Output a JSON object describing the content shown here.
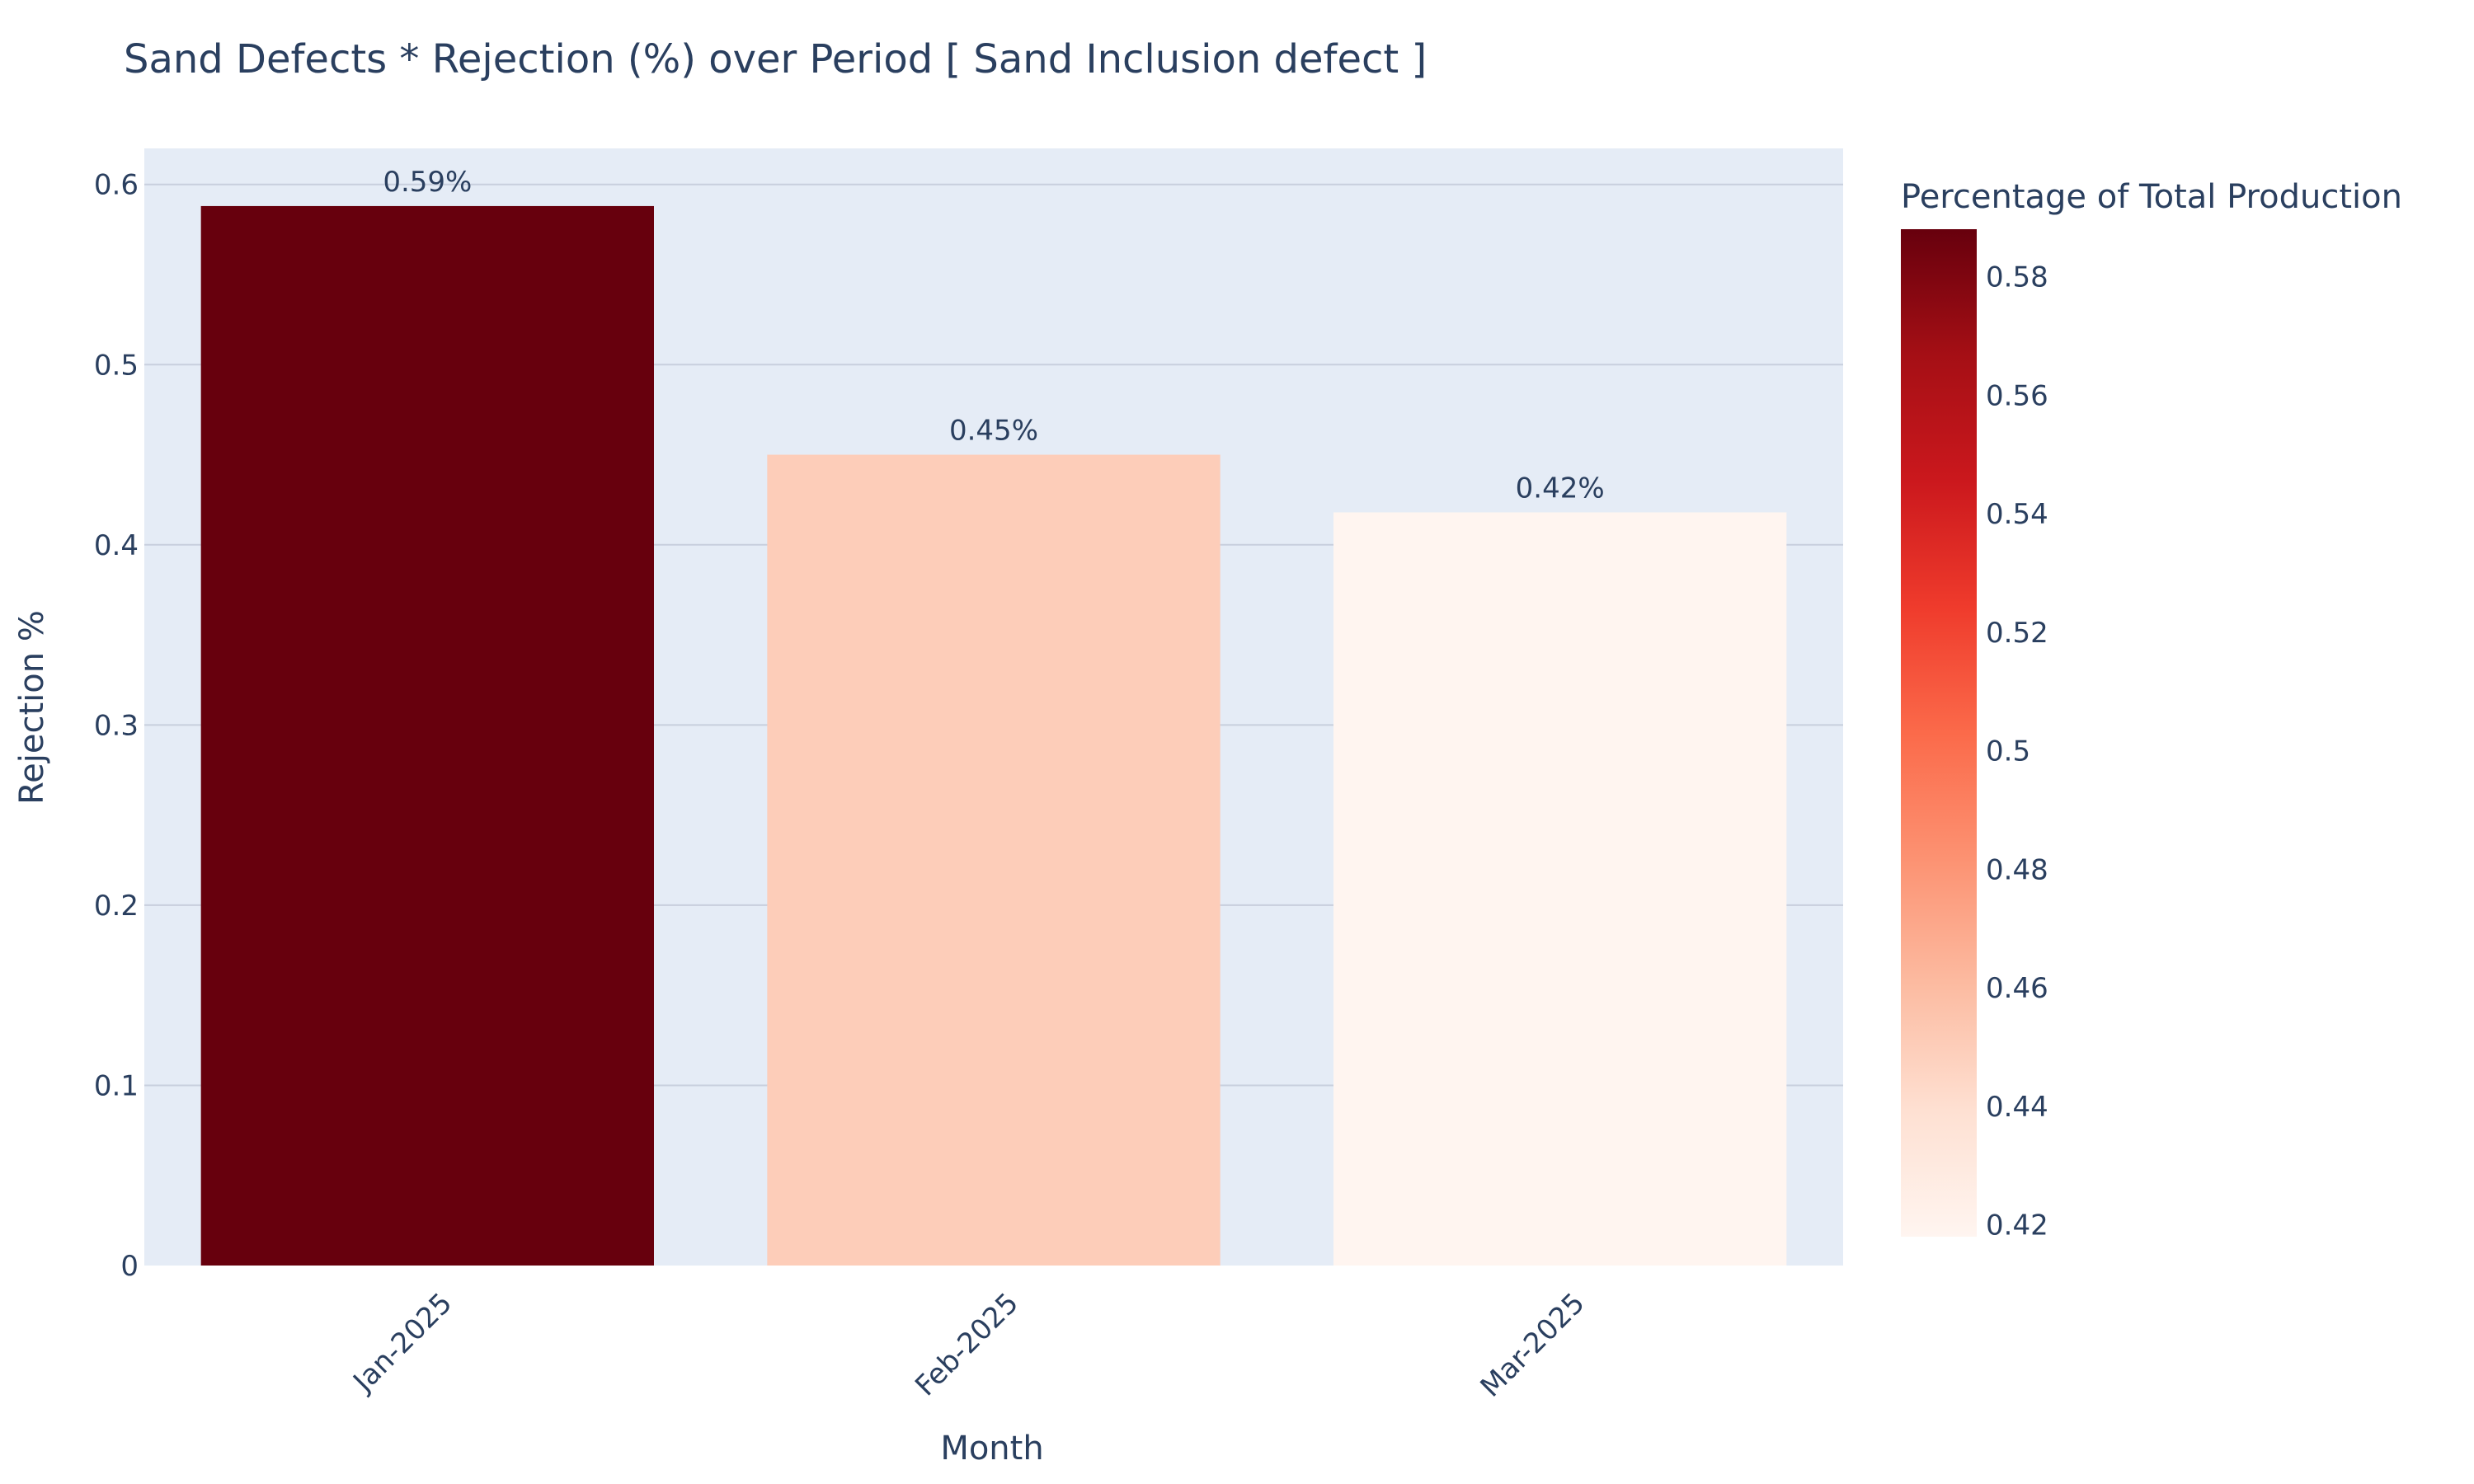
{
  "chart_data": {
    "type": "bar",
    "title": "Sand Defects * Rejection (%) over Period [ Sand Inclusion defect ]",
    "xlabel": "Month",
    "ylabel": "Rejection %",
    "categories": [
      "Jan-2025",
      "Feb-2025",
      "Mar-2025"
    ],
    "values": [
      0.588,
      0.45,
      0.418
    ],
    "data_labels": [
      "0.59%",
      "0.45%",
      "0.42%"
    ],
    "ylim": [
      0,
      0.62
    ],
    "yticks": [
      0,
      0.1,
      0.2,
      0.3,
      0.4,
      0.5,
      0.6
    ],
    "ytick_labels": [
      "0",
      "0.1",
      "0.2",
      "0.3",
      "0.4",
      "0.5",
      "0.6"
    ],
    "grid": true,
    "x_tick_rotation": -45,
    "colorscale": "Reds",
    "colorbar": {
      "title": "Percentage of Total Production",
      "range": [
        0.418,
        0.588
      ],
      "ticks": [
        0.42,
        0.44,
        0.46,
        0.48,
        0.5,
        0.52,
        0.54,
        0.56,
        0.58
      ],
      "tick_labels": [
        "0.42",
        "0.44",
        "0.46",
        "0.48",
        "0.5",
        "0.52",
        "0.54",
        "0.56",
        "0.58"
      ],
      "placement": "right"
    },
    "colors": {
      "plot_background": "#e5ecf6",
      "gridline": "#c8cfdd",
      "text": "#2a3f5f",
      "scale_stops": [
        "#fff5f0",
        "#fee0d2",
        "#fcbba1",
        "#fc9272",
        "#fb6a4a",
        "#ef3b2c",
        "#cb181d",
        "#a50f15",
        "#67000d"
      ]
    }
  }
}
